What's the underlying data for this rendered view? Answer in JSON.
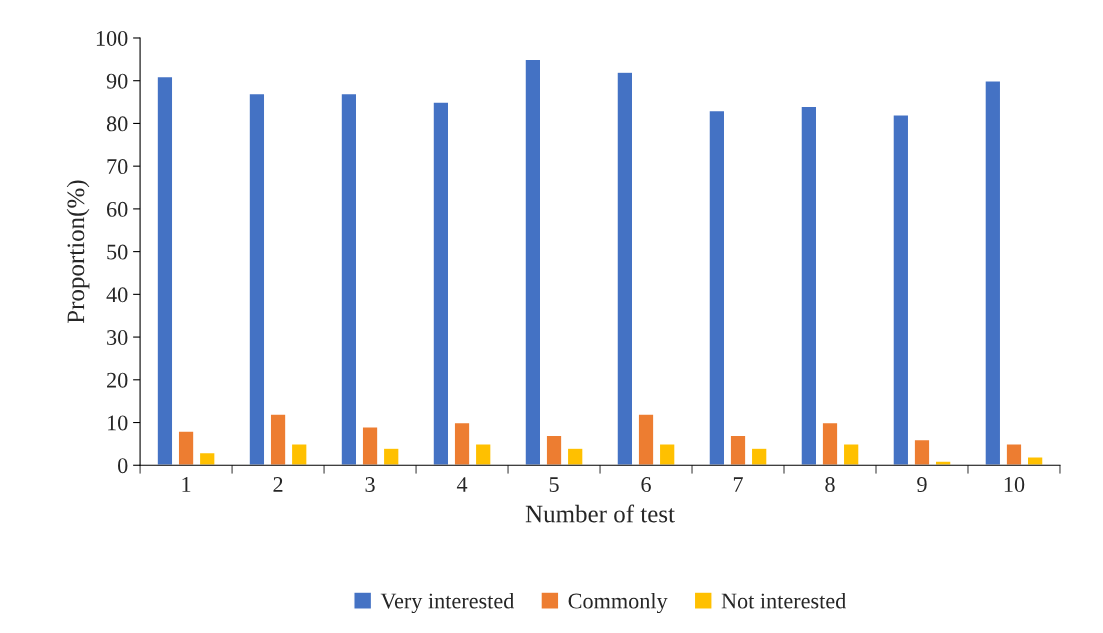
{
  "chart_data": {
    "type": "bar",
    "xlabel": "Number of test",
    "ylabel": "Proportion(%)",
    "categories": [
      "1",
      "2",
      "3",
      "4",
      "5",
      "6",
      "7",
      "8",
      "9",
      "10"
    ],
    "series": [
      {
        "name": "Very interested",
        "color": "#4472c4",
        "values": [
          91,
          87,
          87,
          85,
          95,
          92,
          83,
          84,
          82,
          90
        ]
      },
      {
        "name": "Commonly",
        "color": "#ed7d31",
        "values": [
          8,
          12,
          9,
          10,
          7,
          12,
          7,
          10,
          6,
          5
        ]
      },
      {
        "name": "Not interested",
        "color": "#ffc000",
        "values": [
          3,
          5,
          4,
          5,
          4,
          5,
          4,
          5,
          1,
          2
        ]
      }
    ],
    "ylim": [
      0,
      100
    ],
    "yticks": [
      0,
      10,
      20,
      30,
      40,
      50,
      60,
      70,
      80,
      90,
      100
    ],
    "grid": false,
    "legend": "bottom"
  }
}
